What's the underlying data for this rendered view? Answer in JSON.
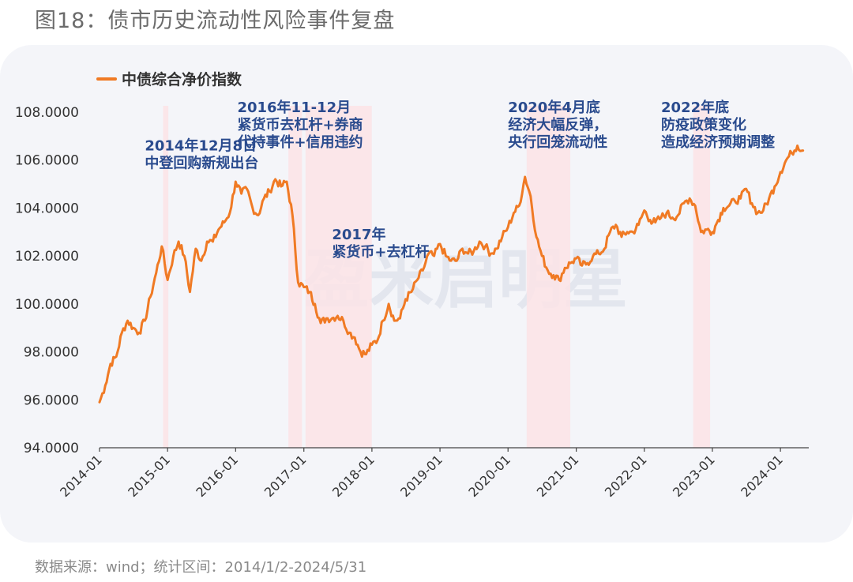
{
  "figure_title": "图18：债市历史流动性风险事件复盘",
  "source_note": "数据来源：wind；统计区间：2014/1/2-2024/5/31",
  "watermark_text": "盈米启明星",
  "colors": {
    "line": "#f07a24",
    "band": "#fbe3e6",
    "annotation": "#2a4b8e",
    "panel": "#f4f5f9"
  },
  "chart_data": {
    "type": "line",
    "title": "图18：债市历史流动性风险事件复盘",
    "xlabel": "",
    "ylabel": "",
    "ylim": [
      94,
      108
    ],
    "xlim": [
      "2014-01-01",
      "2024-06-01"
    ],
    "y_ticks": [
      {
        "value": 108,
        "label": "108.0000"
      },
      {
        "value": 106,
        "label": "106.0000"
      },
      {
        "value": 104,
        "label": "104.0000"
      },
      {
        "value": 102,
        "label": "102.0000"
      },
      {
        "value": 100,
        "label": "100.0000"
      },
      {
        "value": 98,
        "label": "98.0000"
      },
      {
        "value": 96,
        "label": "96.0000"
      },
      {
        "value": 94,
        "label": "94.0000"
      }
    ],
    "x_ticks": [
      "2014-01",
      "2015-01",
      "2016-01",
      "2017-01",
      "2018-01",
      "2019-01",
      "2020-01",
      "2021-01",
      "2022-01",
      "2023-01",
      "2024-01"
    ],
    "legend": {
      "position": "top-left",
      "entries": [
        "中债综合净价指数"
      ]
    },
    "series": [
      {
        "name": "中债综合净价指数",
        "x": [
          "2014-01",
          "2014-02",
          "2014-03",
          "2014-04",
          "2014-05",
          "2014-06",
          "2014-07",
          "2014-08",
          "2014-09",
          "2014-10",
          "2014-11",
          "2014-12",
          "2015-01",
          "2015-02",
          "2015-03",
          "2015-04",
          "2015-05",
          "2015-06",
          "2015-07",
          "2015-08",
          "2015-09",
          "2015-10",
          "2015-11",
          "2015-12",
          "2016-01",
          "2016-02",
          "2016-03",
          "2016-04",
          "2016-05",
          "2016-06",
          "2016-07",
          "2016-08",
          "2016-09",
          "2016-10",
          "2016-11",
          "2016-12",
          "2017-01",
          "2017-02",
          "2017-03",
          "2017-04",
          "2017-05",
          "2017-06",
          "2017-07",
          "2017-08",
          "2017-09",
          "2017-10",
          "2017-11",
          "2017-12",
          "2018-01",
          "2018-02",
          "2018-03",
          "2018-04",
          "2018-05",
          "2018-06",
          "2018-07",
          "2018-08",
          "2018-09",
          "2018-10",
          "2018-11",
          "2018-12",
          "2019-01",
          "2019-02",
          "2019-03",
          "2019-04",
          "2019-05",
          "2019-06",
          "2019-07",
          "2019-08",
          "2019-09",
          "2019-10",
          "2019-11",
          "2019-12",
          "2020-01",
          "2020-02",
          "2020-03",
          "2020-04",
          "2020-05",
          "2020-06",
          "2020-07",
          "2020-08",
          "2020-09",
          "2020-10",
          "2020-11",
          "2020-12",
          "2021-01",
          "2021-02",
          "2021-03",
          "2021-04",
          "2021-05",
          "2021-06",
          "2021-07",
          "2021-08",
          "2021-09",
          "2021-10",
          "2021-11",
          "2021-12",
          "2022-01",
          "2022-02",
          "2022-03",
          "2022-04",
          "2022-05",
          "2022-06",
          "2022-07",
          "2022-08",
          "2022-09",
          "2022-10",
          "2022-11",
          "2022-12",
          "2023-01",
          "2023-02",
          "2023-03",
          "2023-04",
          "2023-05",
          "2023-06",
          "2023-07",
          "2023-08",
          "2023-09",
          "2023-10",
          "2023-11",
          "2023-12",
          "2024-01",
          "2024-02",
          "2024-03",
          "2024-04",
          "2024-05"
        ],
        "values": [
          95.9,
          96.6,
          97.5,
          97.8,
          98.8,
          99.3,
          99.0,
          98.8,
          99.3,
          100.3,
          101.3,
          102.4,
          101.0,
          102.0,
          102.6,
          102.0,
          100.5,
          102.3,
          101.8,
          102.6,
          102.6,
          103.1,
          103.4,
          103.8,
          105.1,
          104.6,
          104.8,
          104.0,
          103.7,
          104.4,
          104.7,
          105.2,
          104.9,
          105.1,
          103.7,
          100.9,
          100.7,
          100.5,
          100.0,
          99.2,
          99.4,
          99.4,
          99.5,
          99.3,
          98.8,
          98.6,
          98.0,
          97.9,
          98.3,
          98.5,
          99.3,
          100.0,
          99.3,
          99.4,
          100.2,
          100.5,
          101.0,
          101.4,
          102.1,
          102.0,
          102.5,
          102.0,
          101.8,
          101.8,
          102.3,
          102.1,
          102.2,
          102.6,
          102.4,
          102.1,
          102.3,
          102.8,
          103.2,
          103.8,
          104.1,
          105.3,
          104.5,
          102.8,
          102.0,
          101.4,
          101.2,
          101.0,
          101.5,
          101.7,
          101.9,
          101.6,
          101.7,
          102.0,
          102.1,
          102.3,
          103.0,
          103.3,
          102.8,
          103.0,
          103.0,
          103.3,
          103.9,
          103.5,
          103.4,
          103.6,
          103.8,
          103.6,
          103.7,
          104.2,
          104.4,
          104.1,
          103.0,
          103.1,
          103.0,
          103.5,
          104.0,
          104.1,
          104.3,
          104.4,
          104.8,
          104.2,
          103.8,
          103.9,
          104.4,
          104.9,
          105.5,
          106.0,
          106.3,
          106.6,
          106.4
        ]
      }
    ],
    "shaded_periods": [
      {
        "start": "2014-12-08",
        "end": "2015-01-05"
      },
      {
        "start": "2016-10-10",
        "end": "2016-12-22"
      },
      {
        "start": "2017-01-10",
        "end": "2017-12-31"
      },
      {
        "start": "2020-04-10",
        "end": "2020-11-30"
      },
      {
        "start": "2022-09-20",
        "end": "2022-12-20"
      }
    ],
    "annotations": [
      {
        "lines": [
          "2014年12月8日",
          "中登回购新规出台"
        ],
        "anchor_date": "2014-09-01",
        "anchor_value": 106.4
      },
      {
        "lines": [
          "2016年11-12月",
          "紧货币去杠杆+券商",
          "代持事件+信用违约"
        ],
        "anchor_date": "2016-01-10",
        "anchor_value": 108.0
      },
      {
        "lines": [
          "2017年",
          "紧货币+去杠杆"
        ],
        "anchor_date": "2017-06-01",
        "anchor_value": 102.7
      },
      {
        "lines": [
          "2020年4月底",
          "经济大幅反弹，",
          "央行回笼流动性"
        ],
        "anchor_date": "2020-01-01",
        "anchor_value": 108.0
      },
      {
        "lines": [
          "2022年底",
          "防疫政策变化",
          "造成经济预期调整"
        ],
        "anchor_date": "2022-04-01",
        "anchor_value": 108.0
      }
    ]
  }
}
